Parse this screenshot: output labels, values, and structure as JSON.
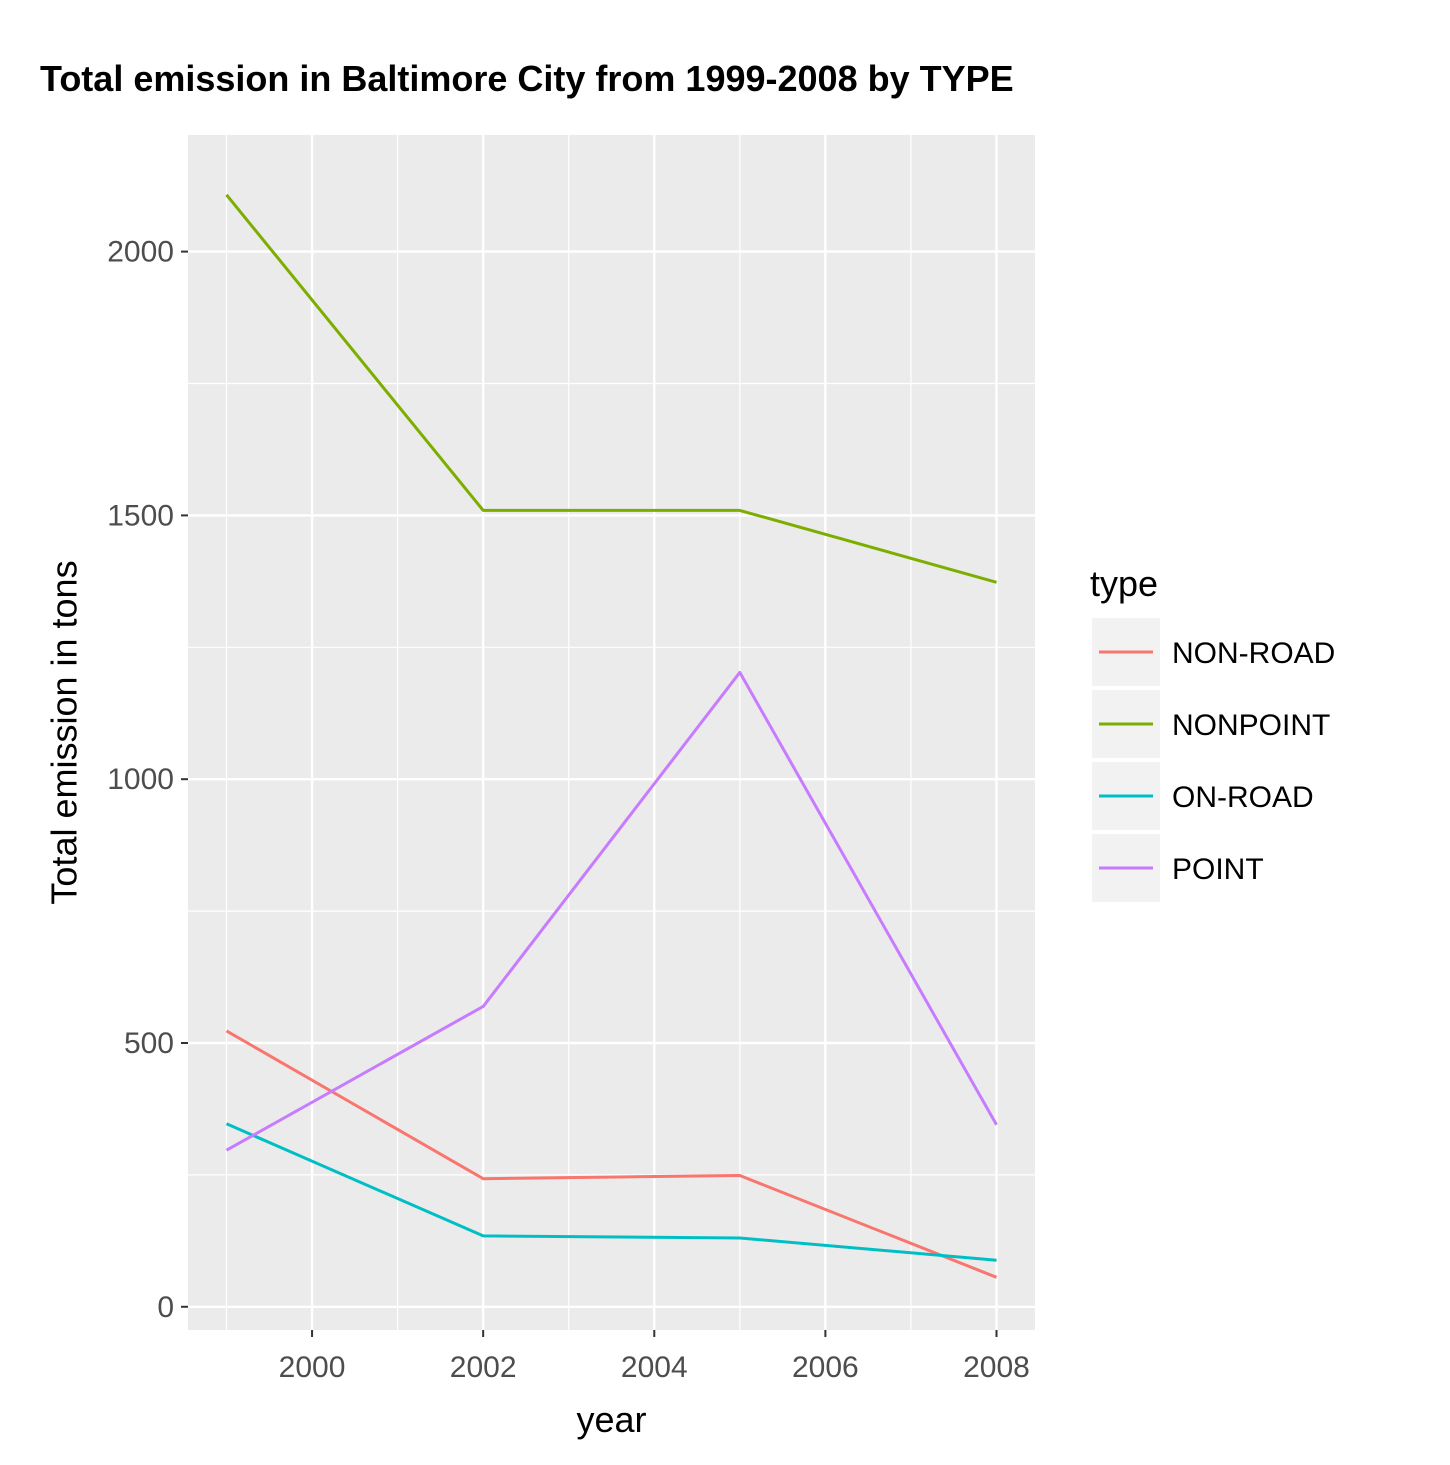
{
  "chart_data": {
    "type": "line",
    "title": "Total emission in Baltimore City from 1999-2008 by TYPE",
    "xlabel": "year",
    "ylabel": "Total emission in tons",
    "x": [
      1999,
      2002,
      2005,
      2008
    ],
    "xlim": [
      1998.55,
      2008.45
    ],
    "ylim": [
      -44,
      2221
    ],
    "x_ticks": [
      2000,
      2002,
      2004,
      2006,
      2008
    ],
    "x_tick_labels": [
      "2000",
      "2002",
      "2004",
      "2006",
      "2008"
    ],
    "y_ticks": [
      0,
      500,
      1000,
      1500,
      2000
    ],
    "y_tick_labels": [
      "0",
      "500",
      "1000",
      "1500",
      "2000"
    ],
    "x_minor_ticks": [
      1999,
      2001,
      2003,
      2005,
      2007
    ],
    "y_minor_ticks": [
      250,
      750,
      1250,
      1750
    ],
    "grid": true,
    "background": "#ebebeb",
    "grid_color": "#ffffff",
    "legend": {
      "title": "type",
      "position": "right"
    },
    "series": [
      {
        "name": "NON-ROAD",
        "color": "#F8766D",
        "values": [
          522.94,
          242.85,
          248.93,
          55.82
        ]
      },
      {
        "name": "NONPOINT",
        "color": "#7CAE00",
        "values": [
          2107.63,
          1509.5,
          1509.5,
          1373.21
        ]
      },
      {
        "name": "ON-ROAD",
        "color": "#00BFC4",
        "values": [
          346.82,
          134.31,
          130.43,
          88.28
        ]
      },
      {
        "name": "POINT",
        "color": "#C77CFF",
        "values": [
          296.8,
          569.26,
          1202.49,
          344.98
        ]
      }
    ]
  }
}
